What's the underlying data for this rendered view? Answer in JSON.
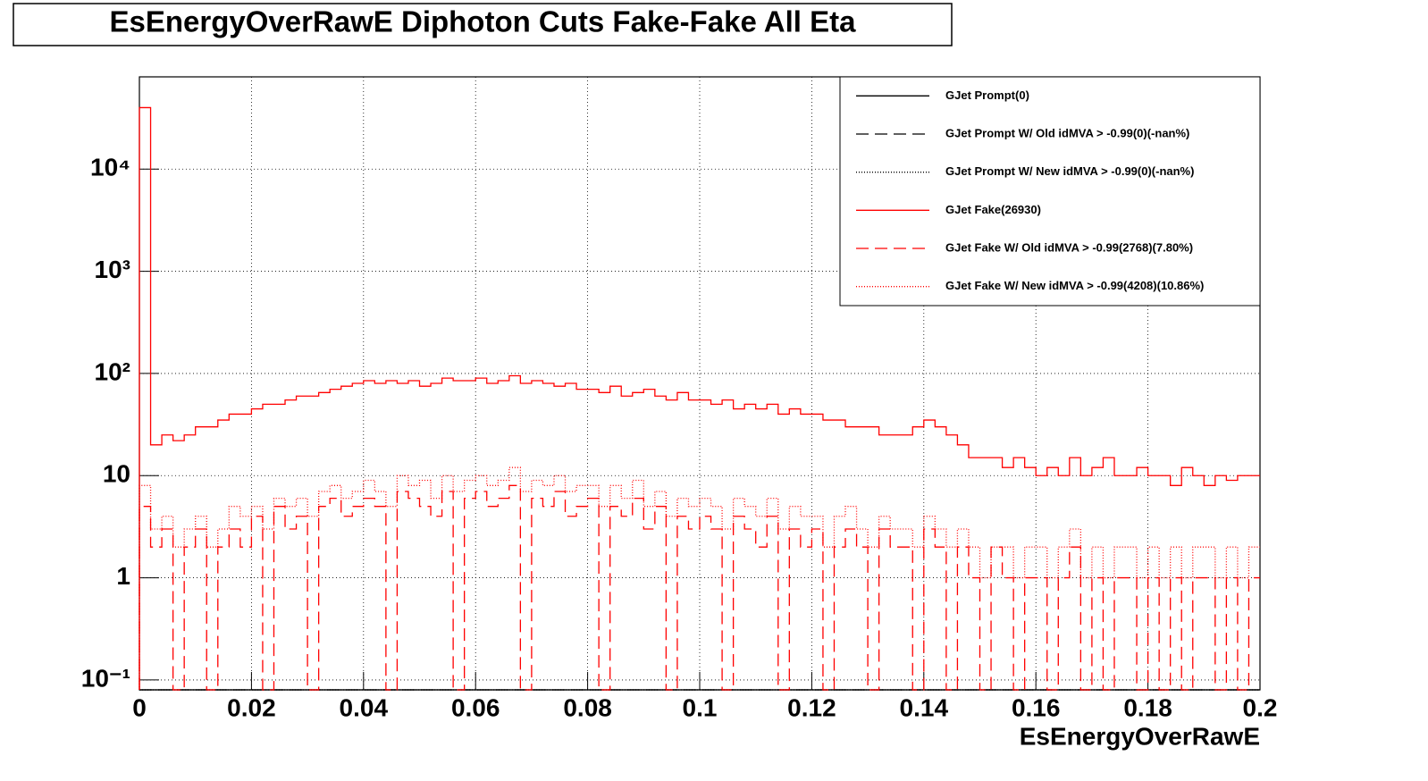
{
  "chart_data": {
    "type": "histogram",
    "title": "EsEnergyOverRawE Diphoton Cuts Fake-Fake All Eta",
    "x_label": "EsEnergyOverRawE",
    "log_y": true,
    "grid": true,
    "legend": "upper right",
    "xlim": [
      0,
      0.2
    ],
    "ylim": [
      0.08,
      80000
    ],
    "xticks": [
      0,
      0.02,
      0.04,
      0.06,
      0.08,
      0.1,
      0.12,
      0.14,
      0.16,
      0.18,
      0.2
    ],
    "yticks": [
      {
        "value": 0.1,
        "label": "10⁻¹"
      },
      1,
      10,
      {
        "value": 100,
        "label": "10²"
      },
      {
        "value": 1000,
        "label": "10³"
      },
      {
        "value": 10000,
        "label": "10⁴"
      }
    ],
    "bins": [
      0,
      0.002,
      0.004,
      0.006,
      0.008,
      0.01,
      0.012,
      0.014,
      0.016,
      0.018,
      0.02,
      0.022,
      0.024,
      0.026,
      0.028,
      0.03,
      0.032,
      0.034,
      0.036,
      0.038,
      0.04,
      0.042,
      0.044,
      0.046,
      0.048,
      0.05,
      0.052,
      0.054,
      0.056,
      0.058,
      0.06,
      0.062,
      0.064,
      0.066,
      0.068,
      0.07,
      0.072,
      0.074,
      0.076,
      0.078,
      0.08,
      0.082,
      0.084,
      0.086,
      0.088,
      0.09,
      0.092,
      0.094,
      0.096,
      0.098,
      0.1,
      0.102,
      0.104,
      0.106,
      0.108,
      0.11,
      0.112,
      0.114,
      0.116,
      0.118,
      0.12,
      0.122,
      0.124,
      0.126,
      0.128,
      0.13,
      0.132,
      0.134,
      0.136,
      0.138,
      0.14,
      0.142,
      0.144,
      0.146,
      0.148,
      0.15,
      0.152,
      0.154,
      0.156,
      0.158,
      0.16,
      0.162,
      0.164,
      0.166,
      0.168,
      0.17,
      0.172,
      0.174,
      0.176,
      0.178,
      0.18,
      0.182,
      0.184,
      0.186,
      0.188,
      0.19,
      0.192,
      0.194,
      0.196,
      0.198,
      0.2
    ],
    "series": [
      {
        "name": "GJet Prompt(0)",
        "color": "#000000",
        "linestyle": "solid",
        "values": [
          0,
          0,
          0,
          0,
          0,
          0,
          0,
          0,
          0,
          0,
          0,
          0,
          0,
          0,
          0,
          0,
          0,
          0,
          0,
          0,
          0,
          0,
          0,
          0,
          0,
          0,
          0,
          0,
          0,
          0,
          0,
          0,
          0,
          0,
          0,
          0,
          0,
          0,
          0,
          0,
          0,
          0,
          0,
          0,
          0,
          0,
          0,
          0,
          0,
          0,
          0,
          0,
          0,
          0,
          0,
          0,
          0,
          0,
          0,
          0,
          0,
          0,
          0,
          0,
          0,
          0,
          0,
          0,
          0,
          0,
          0,
          0,
          0,
          0,
          0,
          0,
          0,
          0,
          0,
          0,
          0,
          0,
          0,
          0,
          0,
          0,
          0,
          0,
          0,
          0,
          0,
          0,
          0,
          0,
          0,
          0,
          0,
          0,
          0,
          0
        ]
      },
      {
        "name": "GJet Prompt W/ Old idMVA > -0.99(0)(-nan%)",
        "color": "#000000",
        "linestyle": "dashed",
        "values": [
          0,
          0,
          0,
          0,
          0,
          0,
          0,
          0,
          0,
          0,
          0,
          0,
          0,
          0,
          0,
          0,
          0,
          0,
          0,
          0,
          0,
          0,
          0,
          0,
          0,
          0,
          0,
          0,
          0,
          0,
          0,
          0,
          0,
          0,
          0,
          0,
          0,
          0,
          0,
          0,
          0,
          0,
          0,
          0,
          0,
          0,
          0,
          0,
          0,
          0,
          0,
          0,
          0,
          0,
          0,
          0,
          0,
          0,
          0,
          0,
          0,
          0,
          0,
          0,
          0,
          0,
          0,
          0,
          0,
          0,
          0,
          0,
          0,
          0,
          0,
          0,
          0,
          0,
          0,
          0,
          0,
          0,
          0,
          0,
          0,
          0,
          0,
          0,
          0,
          0,
          0,
          0,
          0,
          0,
          0,
          0,
          0,
          0,
          0,
          0
        ]
      },
      {
        "name": "GJet Prompt W/ New idMVA > -0.99(0)(-nan%)",
        "color": "#000000",
        "linestyle": "dotted",
        "values": [
          0,
          0,
          0,
          0,
          0,
          0,
          0,
          0,
          0,
          0,
          0,
          0,
          0,
          0,
          0,
          0,
          0,
          0,
          0,
          0,
          0,
          0,
          0,
          0,
          0,
          0,
          0,
          0,
          0,
          0,
          0,
          0,
          0,
          0,
          0,
          0,
          0,
          0,
          0,
          0,
          0,
          0,
          0,
          0,
          0,
          0,
          0,
          0,
          0,
          0,
          0,
          0,
          0,
          0,
          0,
          0,
          0,
          0,
          0,
          0,
          0,
          0,
          0,
          0,
          0,
          0,
          0,
          0,
          0,
          0,
          0,
          0,
          0,
          0,
          0,
          0,
          0,
          0,
          0,
          0,
          0,
          0,
          0,
          0,
          0,
          0,
          0,
          0,
          0,
          0,
          0,
          0,
          0,
          0,
          0,
          0,
          0,
          0,
          0,
          0
        ]
      },
      {
        "name": "GJet Fake(26930)",
        "color": "#ff0000",
        "linestyle": "solid",
        "values": [
          40000,
          20,
          25,
          22,
          25,
          30,
          30,
          35,
          40,
          40,
          45,
          50,
          50,
          55,
          60,
          60,
          65,
          70,
          75,
          80,
          85,
          80,
          85,
          80,
          85,
          75,
          80,
          90,
          85,
          85,
          90,
          80,
          85,
          95,
          80,
          85,
          80,
          75,
          80,
          70,
          70,
          65,
          75,
          60,
          65,
          70,
          60,
          55,
          65,
          55,
          55,
          50,
          55,
          45,
          50,
          45,
          50,
          40,
          45,
          40,
          40,
          35,
          35,
          30,
          30,
          30,
          25,
          25,
          25,
          30,
          35,
          30,
          25,
          20,
          15,
          15,
          15,
          12,
          15,
          12,
          10,
          12,
          10,
          15,
          10,
          12,
          15,
          10,
          10,
          12,
          10,
          10,
          8,
          12,
          10,
          8,
          10,
          9,
          10,
          10
        ]
      },
      {
        "name": "GJet Fake W/ Old idMVA > -0.99(2768)(7.80%)",
        "color": "#ff0000",
        "linestyle": "dashed",
        "values": [
          5,
          2,
          3,
          0,
          2,
          3,
          0,
          2,
          3,
          2,
          4,
          0,
          5,
          3,
          4,
          0,
          5,
          6,
          4,
          5,
          6,
          5,
          0,
          7,
          6,
          5,
          4,
          7,
          0,
          6,
          7,
          5,
          6,
          8,
          0,
          6,
          5,
          7,
          4,
          5,
          6,
          0,
          5,
          4,
          6,
          3,
          5,
          0,
          4,
          3,
          4,
          3,
          0,
          4,
          3,
          2,
          4,
          0,
          3,
          2,
          3,
          0,
          2,
          3,
          2,
          0,
          3,
          2,
          2,
          0,
          3,
          2,
          0,
          2,
          1,
          0,
          2,
          1,
          0,
          1,
          1,
          0,
          1,
          2,
          0,
          1,
          0,
          1,
          1,
          0,
          1,
          0,
          1,
          0,
          1,
          1,
          0,
          1,
          0,
          1
        ]
      },
      {
        "name": "GJet Fake W/ New idMVA > -0.99(4208)(10.86%)",
        "color": "#ff0000",
        "linestyle": "dotted",
        "values": [
          8,
          3,
          4,
          2,
          3,
          4,
          2,
          3,
          5,
          4,
          5,
          3,
          6,
          5,
          6,
          4,
          7,
          8,
          6,
          7,
          9,
          7,
          5,
          10,
          8,
          9,
          6,
          10,
          7,
          9,
          10,
          8,
          9,
          12,
          7,
          9,
          8,
          10,
          7,
          8,
          8,
          5,
          8,
          6,
          9,
          5,
          7,
          4,
          6,
          5,
          6,
          5,
          3,
          6,
          5,
          4,
          6,
          3,
          5,
          4,
          4,
          2,
          4,
          5,
          3,
          2,
          4,
          3,
          3,
          2,
          4,
          3,
          2,
          3,
          2,
          1,
          2,
          2,
          1,
          2,
          2,
          1,
          2,
          3,
          1,
          2,
          1,
          2,
          2,
          1,
          2,
          1,
          2,
          1,
          2,
          2,
          1,
          2,
          1,
          2
        ]
      }
    ]
  }
}
